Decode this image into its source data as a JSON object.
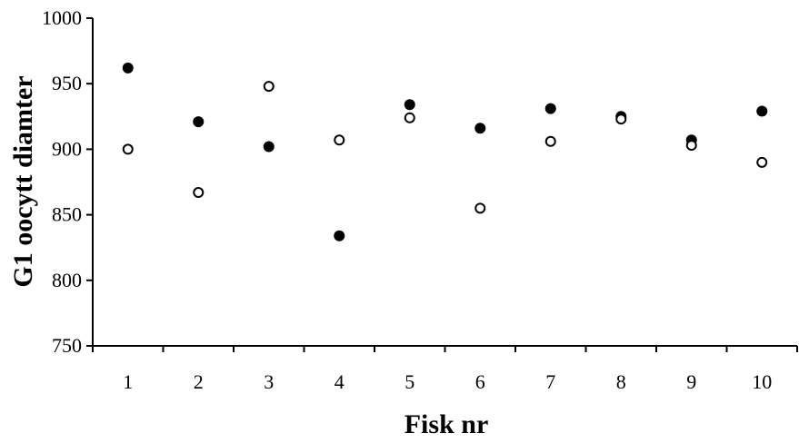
{
  "chart_data": {
    "type": "scatter",
    "title": "",
    "xlabel": "Fisk nr",
    "ylabel": "G1 oocytt diamter",
    "categories": [
      "1",
      "2",
      "3",
      "4",
      "5",
      "6",
      "7",
      "8",
      "9",
      "10"
    ],
    "ylim": [
      750,
      1000
    ],
    "yticks": [
      750,
      800,
      850,
      900,
      950,
      1000
    ],
    "grid": false,
    "legend": "none",
    "series": [
      {
        "marker": "filled-circle",
        "color": "#000000",
        "values": [
          962,
          921,
          902,
          834,
          934,
          916,
          931,
          925,
          907,
          929
        ]
      },
      {
        "marker": "open-circle",
        "color": "#000000",
        "values": [
          900,
          867,
          948,
          907,
          924,
          855,
          906,
          923,
          903,
          890
        ]
      }
    ]
  }
}
